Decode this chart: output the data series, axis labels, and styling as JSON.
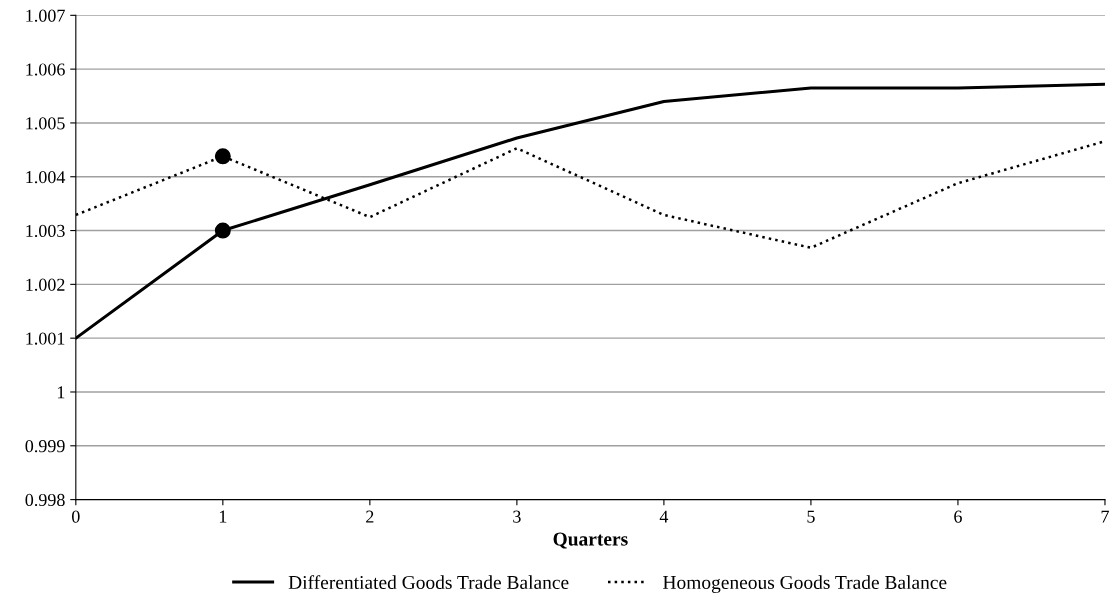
{
  "chart_data": {
    "type": "line",
    "xlabel": "Quarters",
    "x": [
      0,
      1,
      2,
      3,
      4,
      5,
      6,
      7
    ],
    "xlim": [
      0,
      7
    ],
    "xticks": [
      0,
      1,
      2,
      3,
      4,
      5,
      6,
      7
    ],
    "ylim": [
      0.998,
      1.007
    ],
    "yticks": [
      0.998,
      0.999,
      1,
      1.001,
      1.002,
      1.003,
      1.004,
      1.005,
      1.006,
      1.007
    ],
    "grid": "y",
    "legend": "bottom",
    "marker": "none",
    "series": [
      {
        "name": "Differentiated Goods Trade Balance",
        "color": "#000000",
        "line_style": "solid",
        "values": [
          1.001,
          1.003,
          1.00385,
          1.00472,
          1.0054,
          1.00565,
          1.00565,
          1.00572
        ]
      },
      {
        "name": "Homogeneous Goods Trade Balance",
        "color": "#000000",
        "line_style": "dotted",
        "values": [
          1.00329,
          1.00438,
          1.00325,
          1.00453,
          1.00329,
          1.00268,
          1.00388,
          1.00466
        ]
      },
      {
        "type": "scatter",
        "color": "#000000",
        "marker": "circle",
        "x": [
          1,
          1
        ],
        "values": [
          1.00438,
          1.003
        ]
      }
    ]
  }
}
